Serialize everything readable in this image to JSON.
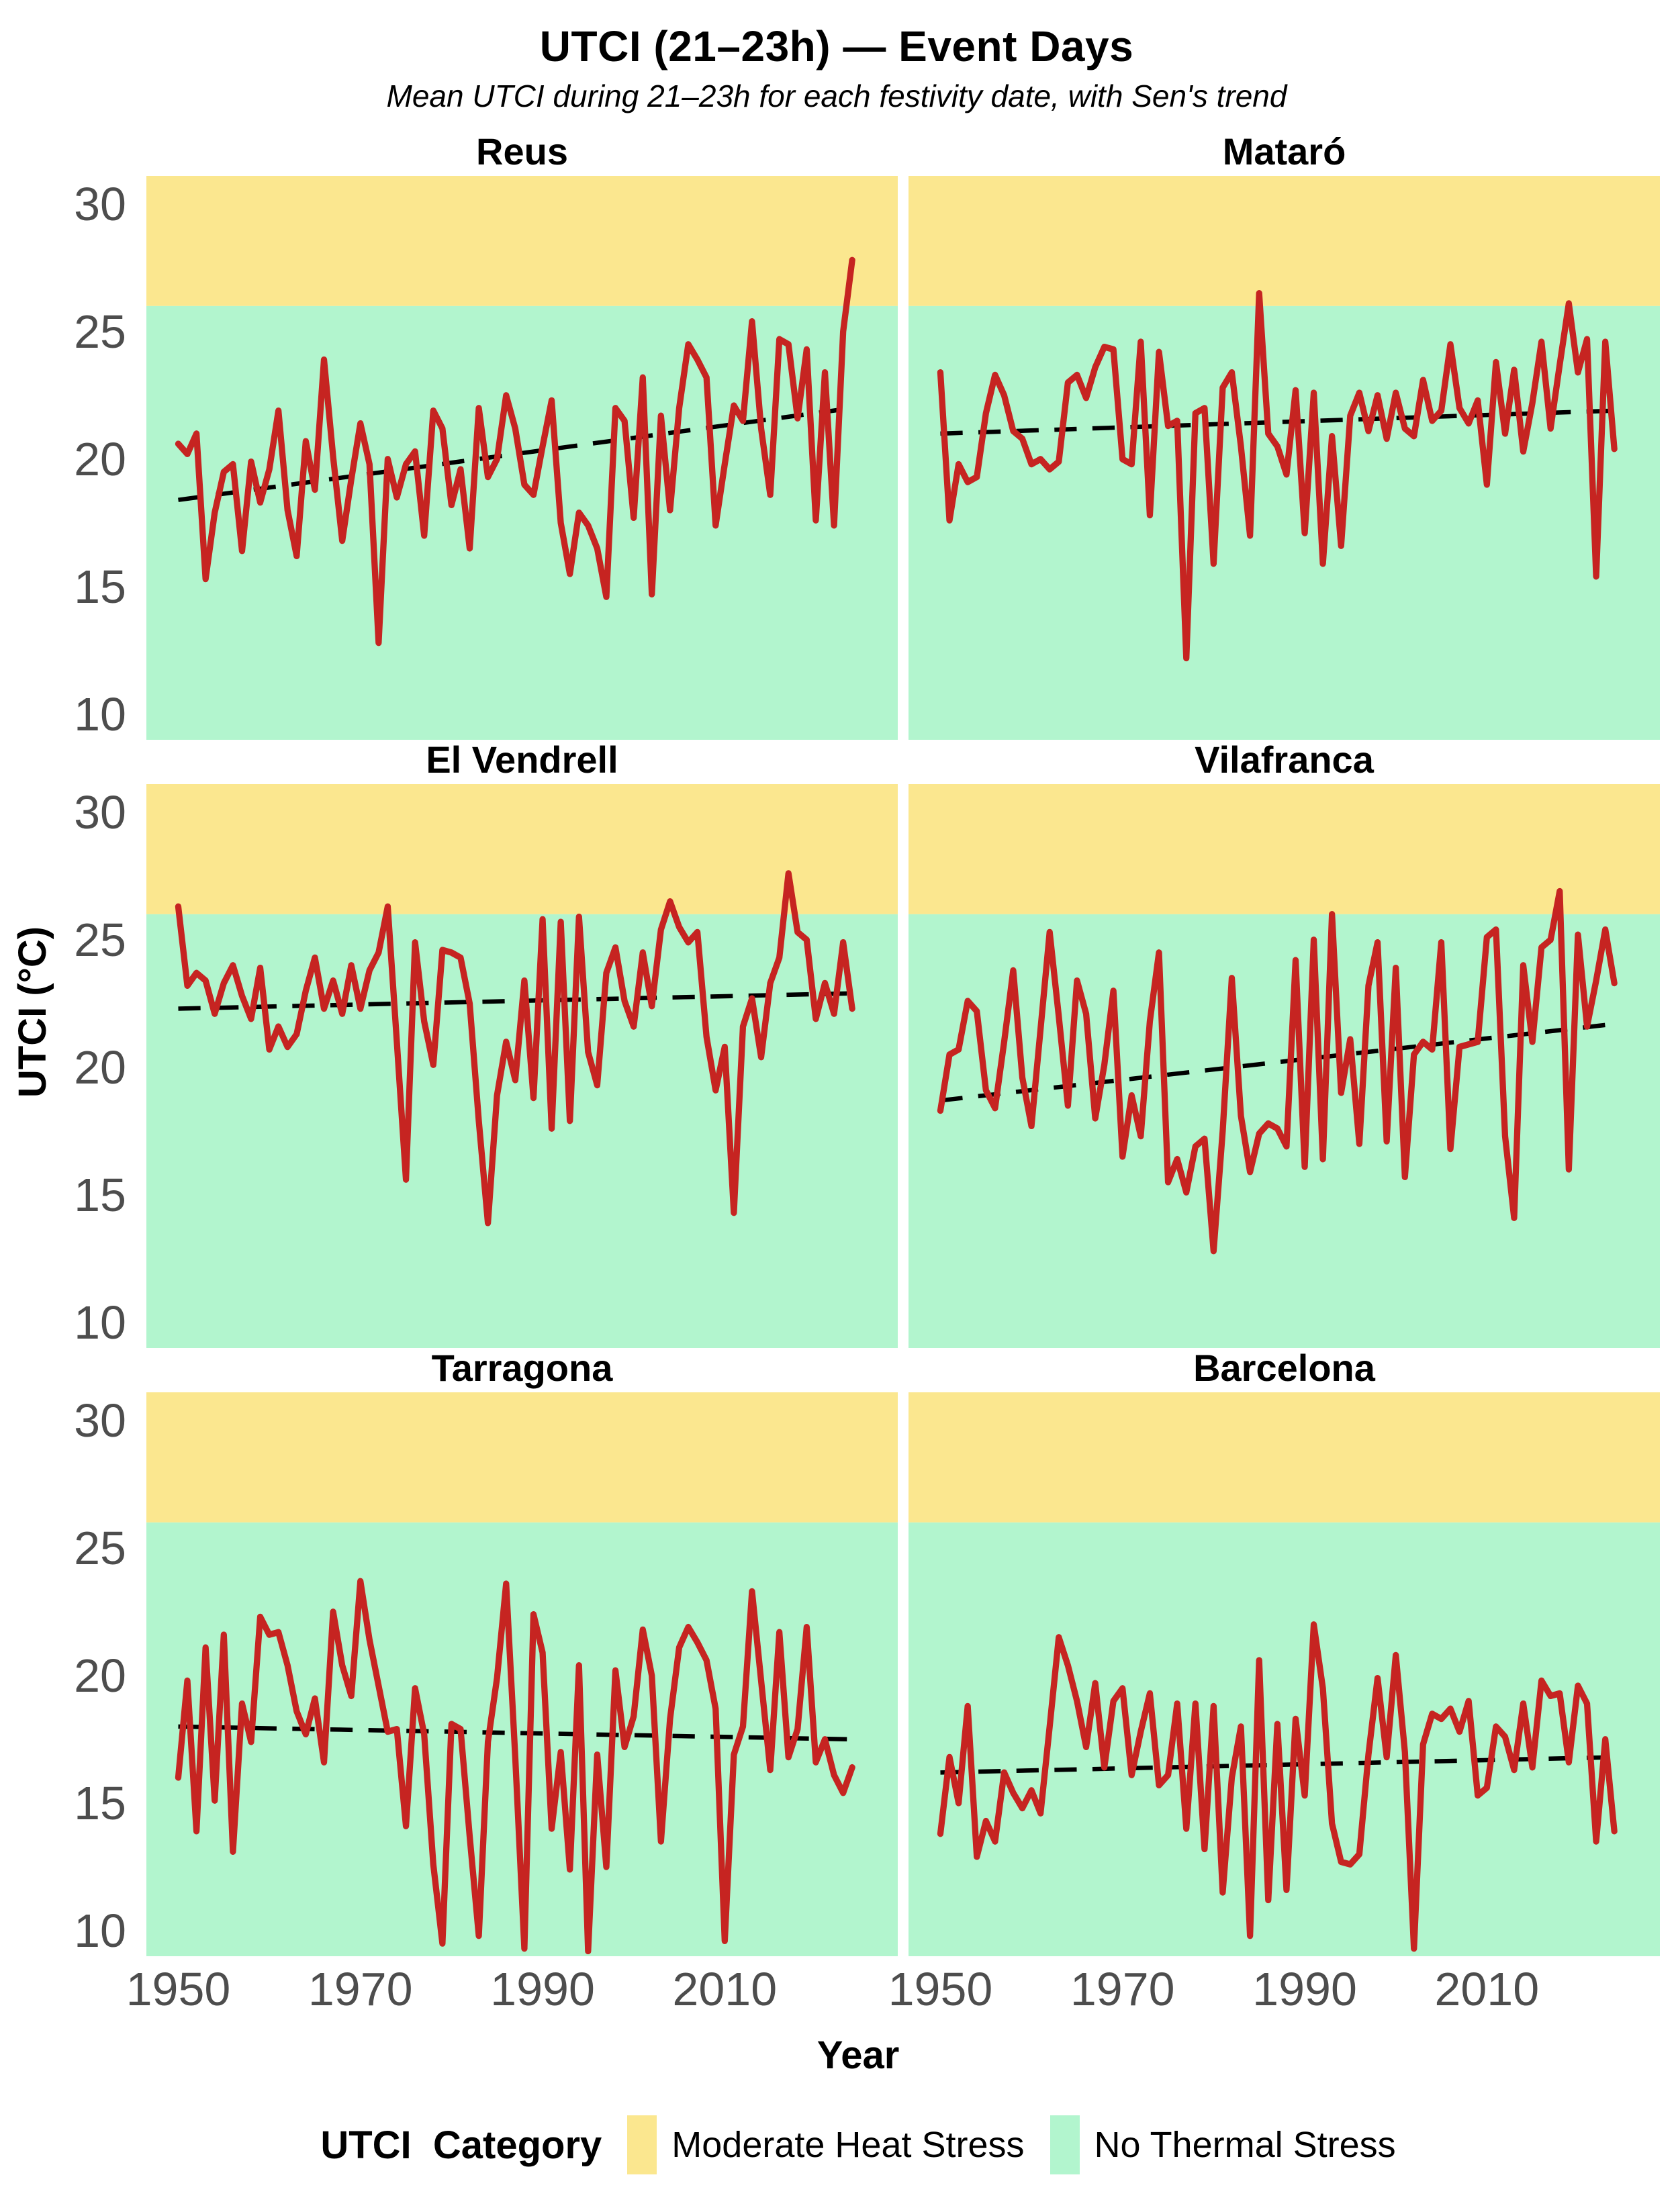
{
  "header": {
    "title": "UTCI (21–23h) — Event Days",
    "subtitle": "Mean UTCI during 21–23h for each festivity date, with Sen's trend"
  },
  "axes": {
    "x_label": "Year",
    "y_label": "UTCI (°C)",
    "x_ticks": [
      1950,
      1970,
      1990,
      2010
    ],
    "y_ticks": [
      30,
      25,
      20,
      15,
      10
    ],
    "x_domain": [
      1946.5,
      2029
    ],
    "y_domain": [
      9.0,
      31.1
    ],
    "band_boundary": 26,
    "grid": "off",
    "tick_color": "#4d4d4d"
  },
  "legend": {
    "title": "UTCI  Category",
    "position": "bottom",
    "items": [
      {
        "label": "Moderate Heat Stress",
        "color": "#FBE78F"
      },
      {
        "label": "No Thermal Stress",
        "color": "#B2F5CE"
      }
    ]
  },
  "colors": {
    "series_line": "#C62421",
    "trend_line": "#000000",
    "moderate_heat_band": "#FBE78F",
    "no_stress_band": "#B2F5CE",
    "background": "#ffffff"
  },
  "chart_data": [
    {
      "type": "line",
      "city": "Reus",
      "start_year": 1950,
      "values": [
        20.6,
        20.2,
        21.0,
        15.3,
        17.9,
        19.5,
        19.8,
        16.4,
        19.9,
        18.3,
        19.6,
        21.9,
        18.0,
        16.2,
        20.7,
        18.8,
        23.9,
        20.1,
        16.8,
        19.2,
        21.4,
        19.8,
        12.8,
        20.0,
        18.5,
        19.8,
        20.3,
        17.0,
        21.9,
        21.2,
        18.2,
        19.6,
        16.5,
        22.0,
        19.3,
        20.0,
        22.5,
        21.2,
        19.0,
        18.6,
        20.5,
        22.3,
        17.5,
        15.5,
        17.9,
        17.4,
        16.5,
        14.6,
        22.0,
        21.5,
        17.7,
        23.2,
        14.7,
        21.7,
        18.0,
        22.0,
        24.5,
        23.9,
        23.2,
        17.4,
        19.8,
        22.1,
        21.5,
        25.4,
        21.2,
        18.6,
        24.7,
        24.5,
        21.6,
        24.3,
        17.6,
        23.4,
        17.4,
        25.0,
        27.8
      ],
      "trend": {
        "start": 18.4,
        "end": 22.0
      }
    },
    {
      "type": "line",
      "city": "Mataró",
      "start_year": 1950,
      "values": [
        23.4,
        17.6,
        19.8,
        19.1,
        19.3,
        21.8,
        23.3,
        22.5,
        21.1,
        20.8,
        19.8,
        20.0,
        19.6,
        19.9,
        23.0,
        23.3,
        22.4,
        23.6,
        24.4,
        24.3,
        20.0,
        19.8,
        24.6,
        17.8,
        24.2,
        21.3,
        21.5,
        12.2,
        21.8,
        22.0,
        15.9,
        22.8,
        23.4,
        20.5,
        17.0,
        26.5,
        21.0,
        20.5,
        19.4,
        22.7,
        17.1,
        22.6,
        15.9,
        20.9,
        16.6,
        21.7,
        22.6,
        21.1,
        22.5,
        20.8,
        22.6,
        21.2,
        20.9,
        23.1,
        21.5,
        21.9,
        24.5,
        22.0,
        21.4,
        22.3,
        19.0,
        23.8,
        21.0,
        23.5,
        20.3,
        22.2,
        24.6,
        21.2,
        23.7,
        26.1,
        23.4,
        24.7,
        15.4,
        24.6,
        20.4
      ],
      "trend": {
        "start": 21.0,
        "end": 21.9
      }
    },
    {
      "type": "line",
      "city": "El Vendrell",
      "start_year": 1950,
      "values": [
        26.3,
        23.2,
        23.7,
        23.4,
        22.1,
        23.3,
        24.0,
        22.8,
        21.9,
        23.9,
        20.7,
        21.6,
        20.8,
        21.3,
        23.0,
        24.3,
        22.3,
        23.4,
        22.1,
        24.0,
        22.3,
        23.8,
        24.5,
        26.3,
        21.0,
        15.6,
        24.9,
        21.8,
        20.1,
        24.6,
        24.5,
        24.3,
        22.5,
        17.9,
        13.9,
        18.9,
        21.0,
        19.5,
        23.4,
        18.8,
        25.8,
        17.6,
        25.7,
        17.9,
        25.9,
        20.6,
        19.3,
        23.7,
        24.7,
        22.6,
        21.6,
        24.5,
        22.4,
        25.4,
        26.5,
        25.5,
        24.9,
        25.3,
        21.2,
        19.1,
        20.8,
        14.3,
        21.6,
        22.7,
        20.4,
        23.3,
        24.3,
        27.6,
        25.3,
        25.0,
        21.9,
        23.3,
        22.1,
        24.9,
        22.3
      ],
      "trend": {
        "start": 22.3,
        "end": 22.9
      }
    },
    {
      "type": "line",
      "city": "Vilafranca",
      "start_year": 1950,
      "values": [
        18.3,
        20.5,
        20.7,
        22.6,
        22.2,
        19.1,
        18.4,
        21.0,
        23.8,
        19.6,
        17.7,
        21.5,
        25.3,
        22.0,
        18.5,
        23.4,
        22.1,
        18.0,
        20.1,
        23.0,
        16.5,
        18.9,
        17.3,
        21.8,
        24.5,
        15.5,
        16.4,
        15.1,
        16.9,
        17.2,
        12.8,
        17.5,
        23.5,
        18.1,
        15.9,
        17.4,
        17.8,
        17.6,
        16.9,
        24.2,
        16.1,
        25.0,
        16.4,
        26.0,
        19.0,
        21.1,
        17.0,
        23.2,
        24.9,
        17.1,
        23.9,
        15.7,
        20.5,
        21.0,
        20.7,
        24.9,
        16.8,
        20.8,
        20.9,
        21.0,
        25.1,
        25.4,
        17.3,
        14.1,
        24.0,
        21.0,
        24.7,
        25.0,
        26.9,
        16.0,
        25.2,
        21.6,
        23.4,
        25.4,
        23.3
      ],
      "trend": {
        "start": 18.7,
        "end": 21.7
      }
    },
    {
      "type": "line",
      "city": "Tarragona",
      "start_year": 1950,
      "values": [
        16.0,
        19.8,
        13.9,
        21.1,
        15.1,
        21.6,
        13.1,
        18.9,
        17.4,
        22.3,
        21.6,
        21.7,
        20.4,
        18.6,
        17.7,
        19.1,
        16.6,
        22.5,
        20.4,
        19.2,
        23.7,
        21.4,
        19.6,
        17.8,
        17.9,
        14.1,
        19.5,
        17.7,
        12.6,
        9.5,
        18.1,
        17.9,
        13.7,
        9.8,
        17.4,
        19.9,
        23.6,
        16.8,
        9.3,
        22.4,
        20.9,
        14.0,
        17.0,
        12.4,
        20.4,
        9.2,
        16.9,
        12.5,
        20.2,
        17.2,
        18.4,
        21.8,
        20.0,
        13.5,
        18.3,
        21.1,
        21.9,
        21.3,
        20.6,
        18.7,
        9.6,
        16.9,
        18.0,
        23.3,
        19.8,
        16.3,
        21.7,
        16.8,
        17.9,
        21.9,
        16.6,
        17.5,
        16.1,
        15.4,
        16.4
      ],
      "trend": {
        "start": 18.0,
        "end": 17.5
      }
    },
    {
      "type": "line",
      "city": "Barcelona",
      "start_year": 1950,
      "values": [
        13.8,
        16.8,
        15.0,
        18.8,
        12.9,
        14.3,
        13.5,
        16.2,
        15.4,
        14.8,
        15.5,
        14.6,
        18.0,
        21.5,
        20.4,
        19.0,
        17.2,
        19.7,
        16.4,
        19.0,
        19.5,
        16.1,
        17.8,
        19.3,
        15.7,
        16.1,
        18.9,
        14.0,
        18.9,
        13.2,
        18.8,
        11.5,
        16.0,
        18.0,
        9.8,
        20.6,
        11.2,
        18.1,
        11.6,
        18.3,
        15.3,
        22.0,
        19.5,
        14.2,
        12.7,
        12.6,
        13.0,
        16.9,
        19.9,
        16.8,
        20.8,
        17.0,
        9.3,
        17.3,
        18.5,
        18.3,
        18.7,
        17.8,
        19.0,
        15.3,
        15.6,
        18.0,
        17.6,
        16.3,
        18.9,
        16.4,
        19.8,
        19.2,
        19.3,
        16.6,
        19.6,
        18.9,
        13.5,
        17.5,
        13.9
      ],
      "trend": {
        "start": 16.2,
        "end": 16.8
      }
    }
  ]
}
